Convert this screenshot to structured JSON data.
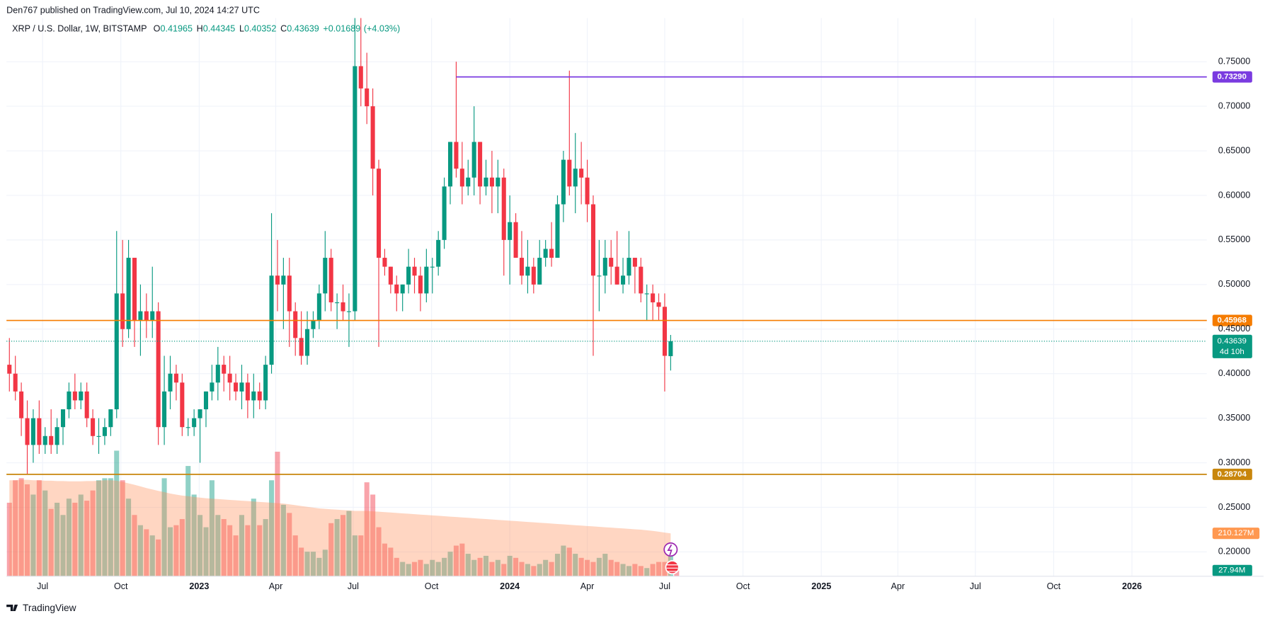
{
  "chart_data": {
    "type": "candlestick",
    "publisher": "Den767 published on TradingView.com, Jul 10, 2024 14:27 UTC",
    "title": "XRP / U.S. Dollar, 1W, BITSTAMP",
    "ohlc_letters": [
      "O",
      "H",
      "L",
      "C"
    ],
    "change": {
      "value": 0.01689,
      "label": "+0.01689"
    },
    "change_pct": {
      "value": 4.03,
      "label": "(+4.03%)"
    },
    "countdown": "4d 10h",
    "brand": "TradingView",
    "up_color": "#089981",
    "down_color": "#f23645",
    "grid": true,
    "open": [
      0.41,
      0.4,
      0.38,
      0.35,
      0.32,
      0.35,
      0.32,
      0.33,
      0.32,
      0.34,
      0.36,
      0.38,
      0.37,
      0.38,
      0.35,
      0.33,
      0.33,
      0.34,
      0.36,
      0.49,
      0.45,
      0.53,
      0.46,
      0.47,
      0.46,
      0.47,
      0.34,
      0.38,
      0.4,
      0.39,
      0.34,
      0.34,
      0.35,
      0.36,
      0.38,
      0.39,
      0.41,
      0.4,
      0.39,
      0.38,
      0.39,
      0.37,
      0.38,
      0.37,
      0.41,
      0.51,
      0.5,
      0.51,
      0.47,
      0.44,
      0.42,
      0.45,
      0.46,
      0.49,
      0.53,
      0.48,
      0.48,
      0.47,
      0.47,
      0.745,
      0.72,
      0.7,
      0.63,
      0.53,
      0.52,
      0.5,
      0.49,
      0.5,
      0.52,
      0.51,
      0.49,
      0.52,
      0.52,
      0.55,
      0.61,
      0.66,
      0.63,
      0.61,
      0.62,
      0.66,
      0.61,
      0.62,
      0.61,
      0.62,
      0.55,
      0.57,
      0.53,
      0.51,
      0.52,
      0.5,
      0.53,
      0.54,
      0.53,
      0.59,
      0.64,
      0.61,
      0.63,
      0.62,
      0.59,
      0.51,
      0.51,
      0.53,
      0.52,
      0.5,
      0.51,
      0.53,
      0.52,
      0.49,
      0.49,
      0.48,
      0.475,
      0.41965
    ],
    "high": [
      0.44,
      0.42,
      0.39,
      0.37,
      0.36,
      0.37,
      0.34,
      0.36,
      0.35,
      0.36,
      0.39,
      0.4,
      0.39,
      0.39,
      0.36,
      0.35,
      0.35,
      0.36,
      0.56,
      0.55,
      0.55,
      0.53,
      0.5,
      0.49,
      0.52,
      0.48,
      0.42,
      0.42,
      0.41,
      0.4,
      0.35,
      0.36,
      0.36,
      0.38,
      0.41,
      0.43,
      0.42,
      0.42,
      0.4,
      0.41,
      0.4,
      0.4,
      0.39,
      0.42,
      0.58,
      0.55,
      0.53,
      0.53,
      0.48,
      0.47,
      0.47,
      0.47,
      0.5,
      0.56,
      0.54,
      0.49,
      0.5,
      0.49,
      0.94,
      0.85,
      0.76,
      0.72,
      0.64,
      0.54,
      0.52,
      0.51,
      0.5,
      0.54,
      0.53,
      0.52,
      0.54,
      0.53,
      0.56,
      0.62,
      0.66,
      0.75,
      0.66,
      0.64,
      0.7,
      0.66,
      0.64,
      0.65,
      0.64,
      0.63,
      0.6,
      0.58,
      0.56,
      0.55,
      0.53,
      0.55,
      0.55,
      0.57,
      0.6,
      0.65,
      0.74,
      0.67,
      0.66,
      0.64,
      0.6,
      0.55,
      0.55,
      0.55,
      0.56,
      0.53,
      0.56,
      0.53,
      0.53,
      0.5,
      0.5,
      0.49,
      0.49,
      0.44345
    ],
    "low": [
      0.38,
      0.37,
      0.33,
      0.287,
      0.3,
      0.31,
      0.31,
      0.31,
      0.31,
      0.32,
      0.35,
      0.36,
      0.36,
      0.34,
      0.32,
      0.31,
      0.32,
      0.33,
      0.35,
      0.43,
      0.44,
      0.43,
      0.42,
      0.44,
      0.44,
      0.32,
      0.32,
      0.36,
      0.37,
      0.33,
      0.33,
      0.33,
      0.3,
      0.34,
      0.37,
      0.37,
      0.38,
      0.37,
      0.37,
      0.36,
      0.35,
      0.35,
      0.36,
      0.36,
      0.4,
      0.47,
      0.45,
      0.43,
      0.42,
      0.41,
      0.41,
      0.44,
      0.45,
      0.47,
      0.47,
      0.45,
      0.46,
      0.43,
      0.46,
      0.7,
      0.68,
      0.6,
      0.43,
      0.51,
      0.49,
      0.47,
      0.47,
      0.49,
      0.49,
      0.47,
      0.48,
      0.49,
      0.51,
      0.54,
      0.59,
      0.62,
      0.59,
      0.6,
      0.6,
      0.59,
      0.6,
      0.58,
      0.58,
      0.51,
      0.5,
      0.53,
      0.5,
      0.49,
      0.49,
      0.5,
      0.52,
      0.52,
      0.53,
      0.57,
      0.6,
      0.58,
      0.59,
      0.57,
      0.42,
      0.47,
      0.49,
      0.5,
      0.5,
      0.49,
      0.5,
      0.49,
      0.48,
      0.46,
      0.46,
      0.46,
      0.38,
      0.40352
    ],
    "close": [
      0.4,
      0.38,
      0.35,
      0.32,
      0.35,
      0.32,
      0.33,
      0.32,
      0.34,
      0.36,
      0.38,
      0.37,
      0.38,
      0.35,
      0.33,
      0.33,
      0.34,
      0.36,
      0.49,
      0.45,
      0.53,
      0.46,
      0.47,
      0.46,
      0.47,
      0.34,
      0.38,
      0.4,
      0.39,
      0.34,
      0.34,
      0.35,
      0.36,
      0.38,
      0.39,
      0.41,
      0.4,
      0.39,
      0.38,
      0.39,
      0.37,
      0.38,
      0.37,
      0.41,
      0.51,
      0.5,
      0.51,
      0.47,
      0.44,
      0.42,
      0.45,
      0.46,
      0.49,
      0.53,
      0.48,
      0.48,
      0.47,
      0.47,
      0.745,
      0.72,
      0.7,
      0.63,
      0.53,
      0.52,
      0.5,
      0.49,
      0.5,
      0.52,
      0.51,
      0.49,
      0.52,
      0.52,
      0.55,
      0.61,
      0.66,
      0.63,
      0.61,
      0.62,
      0.66,
      0.61,
      0.62,
      0.61,
      0.62,
      0.55,
      0.57,
      0.53,
      0.51,
      0.52,
      0.5,
      0.53,
      0.54,
      0.53,
      0.59,
      0.64,
      0.61,
      0.63,
      0.62,
      0.59,
      0.51,
      0.51,
      0.53,
      0.52,
      0.5,
      0.51,
      0.53,
      0.52,
      0.49,
      0.49,
      0.48,
      0.475,
      0.42,
      0.43639
    ],
    "volume": {
      "last_label": "27.94M",
      "values": [
        360,
        470,
        480,
        450,
        400,
        470,
        420,
        330,
        360,
        300,
        380,
        360,
        400,
        370,
        420,
        470,
        480,
        480,
        615,
        470,
        380,
        300,
        250,
        230,
        200,
        180,
        480,
        240,
        250,
        280,
        540,
        400,
        300,
        240,
        470,
        300,
        280,
        250,
        200,
        300,
        250,
        380,
        250,
        280,
        470,
        610,
        350,
        310,
        200,
        140,
        120,
        120,
        90,
        130,
        260,
        280,
        300,
        320,
        200,
        200,
        460,
        400,
        240,
        160,
        140,
        90,
        70,
        60,
        70,
        80,
        60,
        80,
        70,
        90,
        120,
        150,
        160,
        110,
        80,
        90,
        100,
        70,
        80,
        60,
        100,
        90,
        70,
        60,
        50,
        60,
        80,
        70,
        110,
        150,
        140,
        110,
        90,
        80,
        70,
        90,
        110,
        80,
        70,
        60,
        50,
        60,
        50,
        40,
        60,
        70,
        70,
        110,
        27.94
      ]
    },
    "volume_sma": {
      "last_label": "210.127M",
      "values": [
        470,
        470,
        472,
        472,
        470,
        470,
        468,
        468,
        466,
        466,
        465,
        465,
        465,
        466,
        466,
        468,
        470,
        470,
        468,
        462,
        455,
        448,
        440,
        432,
        425,
        418,
        412,
        405,
        400,
        395,
        392,
        388,
        385,
        382,
        380,
        378,
        376,
        374,
        372,
        370,
        368,
        366,
        364,
        362,
        360,
        358,
        356,
        352,
        348,
        344,
        340,
        336,
        332,
        330,
        328,
        326,
        324,
        322,
        320,
        320,
        320,
        318,
        316,
        314,
        312,
        310,
        308,
        306,
        304,
        302,
        300,
        298,
        296,
        294,
        292,
        290,
        288,
        286,
        284,
        282,
        280,
        278,
        276,
        274,
        272,
        270,
        268,
        266,
        264,
        262,
        260,
        258,
        256,
        254,
        252,
        250,
        248,
        246,
        244,
        242,
        240,
        238,
        236,
        234,
        232,
        230,
        228,
        225,
        222,
        218,
        214,
        210.127
      ]
    },
    "levels": [
      {
        "value": 0.7329,
        "label": "0.73290",
        "color": "#7a3be0",
        "start": 75
      },
      {
        "value": 0.45968,
        "color": "#f57c00"
      },
      {
        "value": 0.28704,
        "color": "#c8860c"
      }
    ],
    "xlim": [
      -0.49,
      201
    ],
    "xticks": [
      {
        "value": 5.57,
        "label": "Jul"
      },
      {
        "value": 18.71,
        "label": "Oct"
      },
      {
        "value": 31.86,
        "label": "2023"
      },
      {
        "value": 44.71,
        "label": "Apr"
      },
      {
        "value": 57.71,
        "label": "Jul"
      },
      {
        "value": 70.86,
        "label": "Oct"
      },
      {
        "value": 84,
        "label": "2024"
      },
      {
        "value": 97,
        "label": "Apr"
      },
      {
        "value": 110,
        "label": "Jul"
      },
      {
        "value": 123.14,
        "label": "Oct"
      },
      {
        "value": 136.29,
        "label": "2025"
      },
      {
        "value": 149.14,
        "label": "Apr"
      },
      {
        "value": 162.14,
        "label": "Jul"
      },
      {
        "value": 175.29,
        "label": "Oct"
      },
      {
        "value": 188.43,
        "label": "2026"
      }
    ],
    "ylim": [
      0.1727,
      0.799
    ],
    "yticks": [
      {
        "value": 0.2,
        "label": "0.20000"
      },
      {
        "value": 0.25,
        "label": "0.25000"
      },
      {
        "value": 0.3,
        "label": "0.30000"
      },
      {
        "value": 0.35,
        "label": "0.35000"
      },
      {
        "value": 0.4,
        "label": "0.40000"
      },
      {
        "value": 0.45,
        "label": "0.45000"
      },
      {
        "value": 0.5,
        "label": "0.50000"
      },
      {
        "value": 0.55,
        "label": "0.55000"
      },
      {
        "value": 0.6,
        "label": "0.60000"
      },
      {
        "value": 0.65,
        "label": "0.65000"
      },
      {
        "value": 0.7,
        "label": "0.70000"
      },
      {
        "value": 0.75,
        "label": "0.75000"
      }
    ],
    "y2lim": [
      0,
      2734
    ]
  }
}
